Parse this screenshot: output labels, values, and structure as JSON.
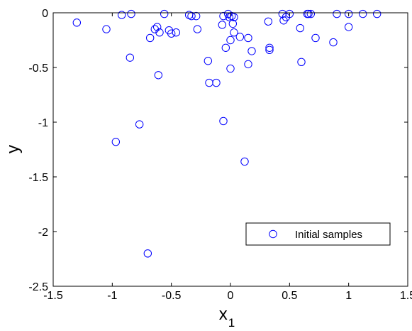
{
  "chart_data": {
    "type": "scatter",
    "xlabel": "x",
    "xlabel_subscript": "1",
    "ylabel": "y",
    "xlim": [
      -1.5,
      1.5
    ],
    "ylim": [
      -2.5,
      0
    ],
    "xticks": [
      "-1.5",
      "-1",
      "-0.5",
      "0",
      "0.5",
      "1",
      "1.5"
    ],
    "yticks": [
      "0",
      "-0.5",
      "-1",
      "-1.5",
      "-2",
      "-2.5"
    ],
    "grid": false,
    "legend_position": "lower-right",
    "series": [
      {
        "name": "Initial samples",
        "color": "#0000ff",
        "marker": "circle-open",
        "points": [
          [
            -1.3,
            -0.09
          ],
          [
            -1.05,
            -0.15
          ],
          [
            -0.92,
            -0.02
          ],
          [
            -0.84,
            -0.01
          ],
          [
            -0.85,
            -0.41
          ],
          [
            -0.97,
            -1.18
          ],
          [
            -0.77,
            -1.02
          ],
          [
            -0.7,
            -2.2
          ],
          [
            -0.68,
            -0.23
          ],
          [
            -0.64,
            -0.15
          ],
          [
            -0.62,
            -0.13
          ],
          [
            -0.6,
            -0.18
          ],
          [
            -0.61,
            -0.57
          ],
          [
            -0.56,
            -0.01
          ],
          [
            -0.52,
            -0.16
          ],
          [
            -0.5,
            -0.19
          ],
          [
            -0.46,
            -0.18
          ],
          [
            -0.35,
            -0.02
          ],
          [
            -0.33,
            -0.03
          ],
          [
            -0.29,
            -0.03
          ],
          [
            -0.28,
            -0.15
          ],
          [
            -0.19,
            -0.44
          ],
          [
            -0.18,
            -0.64
          ],
          [
            -0.12,
            -0.64
          ],
          [
            -0.07,
            -0.11
          ],
          [
            -0.06,
            -0.03
          ],
          [
            -0.06,
            -0.99
          ],
          [
            -0.04,
            -0.32
          ],
          [
            -0.02,
            -0.01
          ],
          [
            -0.01,
            -0.04
          ],
          [
            0.0,
            -0.25
          ],
          [
            0.0,
            -0.51
          ],
          [
            0.01,
            -0.03
          ],
          [
            0.02,
            -0.1
          ],
          [
            0.03,
            -0.18
          ],
          [
            0.03,
            -0.04
          ],
          [
            0.08,
            -0.22
          ],
          [
            0.12,
            -1.36
          ],
          [
            0.15,
            -0.23
          ],
          [
            0.15,
            -0.47
          ],
          [
            0.18,
            -0.35
          ],
          [
            0.32,
            -0.08
          ],
          [
            0.33,
            -0.32
          ],
          [
            0.33,
            -0.34
          ],
          [
            0.44,
            -0.01
          ],
          [
            0.45,
            -0.07
          ],
          [
            0.47,
            -0.04
          ],
          [
            0.5,
            -0.01
          ],
          [
            0.59,
            -0.14
          ],
          [
            0.6,
            -0.45
          ],
          [
            0.65,
            -0.01
          ],
          [
            0.66,
            -0.01
          ],
          [
            0.68,
            -0.01
          ],
          [
            0.72,
            -0.23
          ],
          [
            0.87,
            -0.27
          ],
          [
            0.9,
            -0.01
          ],
          [
            1.0,
            -0.01
          ],
          [
            1.0,
            -0.13
          ],
          [
            1.12,
            -0.01
          ],
          [
            1.24,
            -0.01
          ]
        ]
      }
    ]
  }
}
